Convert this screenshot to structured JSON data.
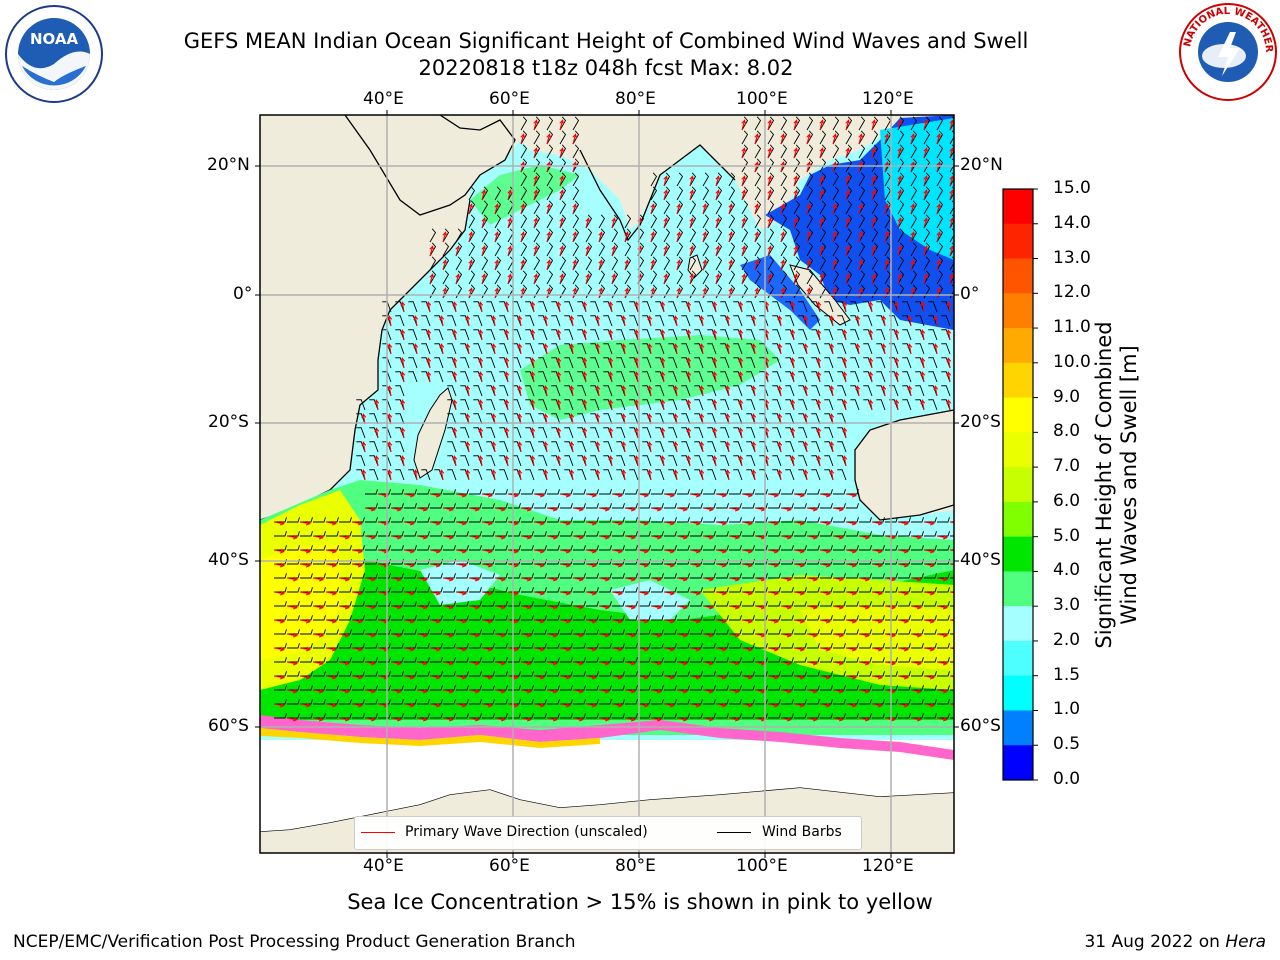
{
  "title": {
    "line1": "GEFS MEAN Indian Ocean Significant Height of Combined Wind Waves and Swell",
    "line2": "20220818 t18z 048h fcst   Max: 8.02"
  },
  "logos": {
    "left": {
      "text": "NOAA",
      "icon": "noaa-logo"
    },
    "right": {
      "text": "NATIONAL WEATHER SERVICE",
      "icon": "nws-logo"
    }
  },
  "map": {
    "lon_ticks_top": [
      "40°E",
      "60°E",
      "80°E",
      "100°E",
      "120°E"
    ],
    "lon_ticks_bottom": [
      "40°E",
      "60°E",
      "80°E",
      "100°E",
      "120°E"
    ],
    "lat_ticks_left": [
      "20°N",
      "0°",
      "20°S",
      "40°S",
      "60°S"
    ],
    "lat_ticks_right": [
      "20°N",
      "0°",
      "20°S",
      "40°S",
      "60°S"
    ],
    "colors": {
      "land": "#efecdc",
      "ocean_low": "#a6ffff",
      "wind_barb": "#000000",
      "wave_dir": "#ff0000"
    },
    "legend": {
      "wave_direction": "Primary Wave Direction (unscaled)",
      "wind_barbs": "Wind Barbs"
    }
  },
  "colorbar": {
    "title_line1": "Significant Height of Combined",
    "title_line2": "Wind Waves and Swell [m]",
    "ticks": [
      "15.0",
      "14.0",
      "13.0",
      "12.0",
      "11.0",
      "10.0",
      "9.0",
      "8.0",
      "7.0",
      "6.0",
      "5.0",
      "4.0",
      "3.0",
      "2.0",
      "1.5",
      "1.0",
      "0.5",
      "0.0"
    ],
    "colors": [
      "#ff0000",
      "#ff2400",
      "#ff5500",
      "#ff8000",
      "#ffaa00",
      "#ffd500",
      "#ffff00",
      "#eaff00",
      "#c8ff00",
      "#80ff00",
      "#00e600",
      "#50ff80",
      "#a6ffff",
      "#4dffff",
      "#00ffff",
      "#0080ff",
      "#0000ff"
    ]
  },
  "caption": "Sea Ice Concentration > 15% is shown in pink to yellow",
  "footer": {
    "left": "NCEP/EMC/Verification Post Processing Product Generation Branch",
    "right_date": "31 Aug 2022 on",
    "right_machine": "Hera"
  }
}
